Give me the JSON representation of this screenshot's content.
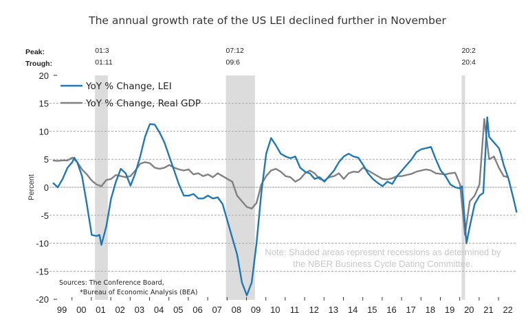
{
  "chart_data": {
    "type": "line",
    "title": "The annual growth rate of the US LEI declined further in November",
    "xlabel": "",
    "ylabel": "Percent",
    "ylim": [
      -20,
      20
    ],
    "xlim": [
      1999,
      2023
    ],
    "yticks": [
      20,
      15,
      10,
      5,
      0,
      -5,
      -10,
      -15,
      -20
    ],
    "yticks_labels": [
      "20",
      "15",
      "10",
      "5",
      "0",
      "-5",
      "-10",
      "-15",
      "-20"
    ],
    "xtick_labels": [
      "99",
      "00",
      "01",
      "02",
      "03",
      "04",
      "05",
      "06",
      "07",
      "08",
      "09",
      "10",
      "11",
      "12",
      "13",
      "14",
      "15",
      "16",
      "17",
      "18",
      "19",
      "20",
      "21",
      "22"
    ],
    "grid": "horizontal-dashed",
    "legend_position": "top-left",
    "peak_label": "Peak:",
    "trough_label": "Trough:",
    "recessions": [
      {
        "peak": "01:3",
        "trough": "01:11",
        "start": 2001.17,
        "end": 2001.83
      },
      {
        "peak": "07:12",
        "trough": "09:6",
        "start": 2007.92,
        "end": 2009.42
      },
      {
        "peak": "20:2",
        "trough": "20:4",
        "start": 2020.08,
        "end": 2020.25
      }
    ],
    "series": [
      {
        "name": "YoY % Change, LEI",
        "color": "#1f77b4",
        "x": [
          1999.0,
          1999.25,
          1999.5,
          1999.75,
          2000.0,
          2000.1,
          2000.25,
          2000.5,
          2000.75,
          2001.0,
          2001.25,
          2001.4,
          2001.5,
          2001.75,
          2002.0,
          2002.25,
          2002.5,
          2002.75,
          2003.0,
          2003.25,
          2003.5,
          2003.75,
          2004.0,
          2004.25,
          2004.5,
          2004.75,
          2005.0,
          2005.25,
          2005.5,
          2005.75,
          2006.0,
          2006.25,
          2006.5,
          2006.75,
          2007.0,
          2007.25,
          2007.5,
          2007.75,
          2008.0,
          2008.25,
          2008.5,
          2008.75,
          2009.0,
          2009.25,
          2009.5,
          2009.75,
          2010.0,
          2010.25,
          2010.5,
          2010.75,
          2011.0,
          2011.25,
          2011.5,
          2011.75,
          2012.0,
          2012.25,
          2012.5,
          2012.75,
          2013.0,
          2013.25,
          2013.5,
          2013.75,
          2014.0,
          2014.25,
          2014.5,
          2014.75,
          2015.0,
          2015.25,
          2015.5,
          2015.75,
          2016.0,
          2016.25,
          2016.5,
          2016.75,
          2017.0,
          2017.25,
          2017.5,
          2017.75,
          2018.0,
          2018.25,
          2018.5,
          2018.75,
          2019.0,
          2019.25,
          2019.5,
          2019.75,
          2020.0,
          2020.1,
          2020.33,
          2020.5,
          2020.75,
          2021.0,
          2021.2,
          2021.4,
          2021.5,
          2021.75,
          2022.0,
          2022.1,
          2022.25,
          2022.5,
          2022.75,
          2022.92
        ],
        "values": [
          0.8,
          0.0,
          1.5,
          3.5,
          4.5,
          5.3,
          4.5,
          2.0,
          -3.0,
          -8.5,
          -8.7,
          -8.5,
          -10.3,
          -7.0,
          -2.0,
          1.0,
          3.3,
          2.5,
          0.3,
          2.5,
          5.5,
          9.0,
          11.3,
          11.2,
          9.8,
          8.0,
          5.5,
          3.0,
          0.5,
          -1.5,
          -1.5,
          -1.2,
          -2.0,
          -2.0,
          -1.5,
          -2.0,
          -1.8,
          -3.0,
          -6.0,
          -9.0,
          -12.0,
          -17.0,
          -19.3,
          -17.0,
          -10.0,
          -1.0,
          6.0,
          8.8,
          7.5,
          6.0,
          5.5,
          5.2,
          5.5,
          3.5,
          2.8,
          2.5,
          1.5,
          1.8,
          1.0,
          2.0,
          3.0,
          4.5,
          5.5,
          6.0,
          5.5,
          5.3,
          4.0,
          2.5,
          1.5,
          0.8,
          0.2,
          1.0,
          0.6,
          2.0,
          3.0,
          4.0,
          5.0,
          6.3,
          6.8,
          7.0,
          7.2,
          5.0,
          3.0,
          2.0,
          0.5,
          0.0,
          -0.2,
          0.2,
          -10.0,
          -7.0,
          -3.0,
          -1.5,
          -1.0,
          12.5,
          9.0,
          8.0,
          7.0,
          6.0,
          4.0,
          1.5,
          -2.0,
          -4.5
        ]
      },
      {
        "name": "YoY % Change, Real GDP",
        "color": "#808080",
        "x": [
          1999.0,
          1999.25,
          1999.5,
          1999.75,
          2000.0,
          2000.25,
          2000.5,
          2000.75,
          2001.0,
          2001.25,
          2001.5,
          2001.75,
          2002.0,
          2002.25,
          2002.5,
          2002.75,
          2003.0,
          2003.25,
          2003.5,
          2003.75,
          2004.0,
          2004.25,
          2004.5,
          2004.75,
          2005.0,
          2005.25,
          2005.5,
          2005.75,
          2006.0,
          2006.25,
          2006.5,
          2006.75,
          2007.0,
          2007.25,
          2007.5,
          2007.75,
          2008.0,
          2008.25,
          2008.5,
          2008.75,
          2009.0,
          2009.25,
          2009.5,
          2009.75,
          2010.0,
          2010.25,
          2010.5,
          2010.75,
          2011.0,
          2011.25,
          2011.5,
          2011.75,
          2012.0,
          2012.25,
          2012.5,
          2012.75,
          2013.0,
          2013.25,
          2013.5,
          2013.75,
          2014.0,
          2014.25,
          2014.5,
          2014.75,
          2015.0,
          2015.25,
          2015.5,
          2015.75,
          2016.0,
          2016.25,
          2016.5,
          2016.75,
          2017.0,
          2017.25,
          2017.5,
          2017.75,
          2018.0,
          2018.25,
          2018.5,
          2018.75,
          2019.0,
          2019.25,
          2019.5,
          2019.75,
          2020.0,
          2020.25,
          2020.5,
          2020.75,
          2021.0,
          2021.25,
          2021.5,
          2021.75,
          2022.0,
          2022.25,
          2022.5
        ],
        "values": [
          4.8,
          4.7,
          4.8,
          4.8,
          5.3,
          4.5,
          3.2,
          2.3,
          1.2,
          0.5,
          0.2,
          1.3,
          1.5,
          2.2,
          2.0,
          1.8,
          2.0,
          3.0,
          4.2,
          4.5,
          4.3,
          3.5,
          3.3,
          3.5,
          4.0,
          3.5,
          3.2,
          3.0,
          3.2,
          2.3,
          2.5,
          2.0,
          2.3,
          1.8,
          2.5,
          2.0,
          1.5,
          1.0,
          -1.5,
          -2.5,
          -3.5,
          -3.8,
          -2.8,
          0.5,
          2.0,
          3.0,
          3.3,
          2.8,
          2.0,
          1.8,
          1.0,
          1.5,
          2.5,
          3.0,
          2.5,
          1.5,
          1.2,
          1.8,
          2.0,
          2.5,
          1.5,
          2.5,
          2.8,
          2.7,
          3.5,
          3.0,
          2.5,
          2.0,
          1.5,
          1.4,
          1.6,
          2.0,
          2.0,
          2.2,
          2.4,
          2.8,
          3.0,
          3.2,
          3.0,
          2.5,
          2.4,
          2.3,
          2.5,
          2.6,
          0.5,
          -8.5,
          -2.5,
          -1.5,
          0.5,
          12.2,
          5.0,
          5.5,
          3.5,
          2.0,
          1.8
        ]
      }
    ],
    "annotations": {
      "note_line1": "Note: Shaded areas represent recessions as determined by",
      "note_line2": "the NBER Business Cycle Dating Committee.",
      "source_line1": "Sources: The Conference Board,",
      "source_line2": "*Bureau of Economic Analysis (BEA)"
    }
  }
}
